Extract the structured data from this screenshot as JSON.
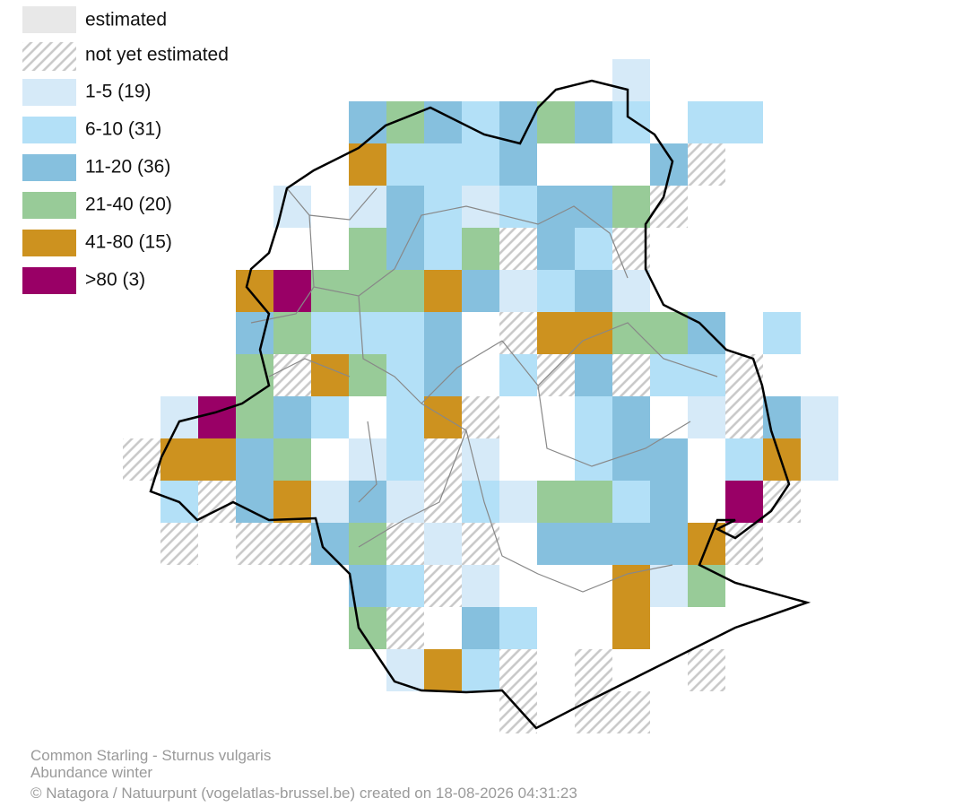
{
  "legend": {
    "estimated": "estimated",
    "not_estimated": "not yet estimated",
    "classes": [
      {
        "label": "1-5 (19)",
        "color": "#d6eaf8"
      },
      {
        "label": "6-10 (31)",
        "color": "#b3e0f7"
      },
      {
        "label": "11-20 (36)",
        "color": "#86c0de"
      },
      {
        "label": "21-40 (20)",
        "color": "#98cb98"
      },
      {
        "label": "41-80 (15)",
        "color": "#cd921f"
      },
      {
        "label": ">80 (3)",
        "color": "#990066"
      }
    ]
  },
  "footer": [
    "Common Starling - Sturnus vulgaris",
    "Abundance winter",
    "© Natagora / Natuurpunt (vogelatlas-brussel.be) created on 18-08-2026 04:31:23"
  ]
}
